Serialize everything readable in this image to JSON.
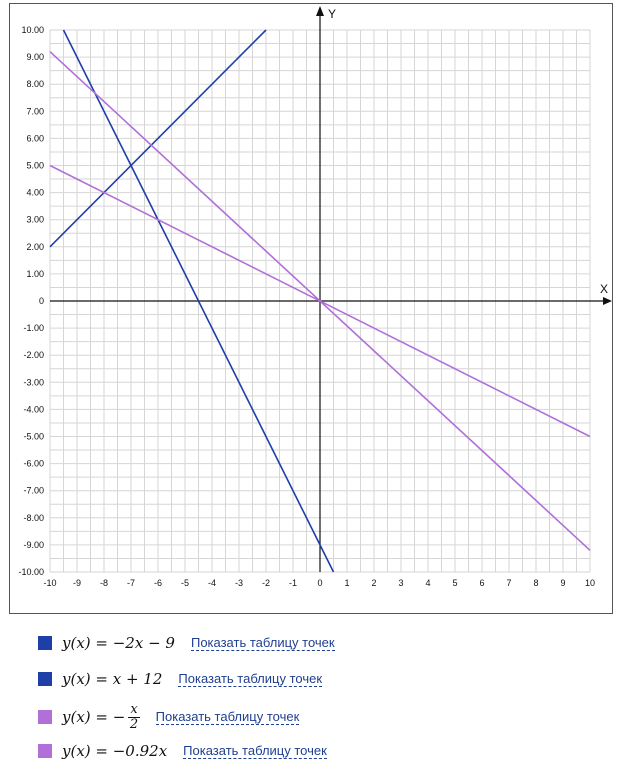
{
  "chart_data": {
    "type": "line",
    "xlim": [
      -10,
      10
    ],
    "ylim": [
      -10,
      10
    ],
    "xlabel": "X",
    "ylabel": "Y",
    "grid": true,
    "x_ticks": [
      "-10",
      "-9",
      "-8",
      "-7",
      "-6",
      "-5",
      "-4",
      "-3",
      "-2",
      "-1",
      "0",
      "1",
      "2",
      "3",
      "4",
      "5",
      "6",
      "7",
      "8",
      "9",
      "10"
    ],
    "y_ticks": [
      "10.00",
      "9.00",
      "8.00",
      "7.00",
      "6.00",
      "5.00",
      "4.00",
      "3.00",
      "2.00",
      "1.00",
      "0",
      "-1.00",
      "-2.00",
      "-3.00",
      "-4.00",
      "-5.00",
      "-6.00",
      "-7.00",
      "-8.00",
      "-9.00",
      "-10.00"
    ],
    "series": [
      {
        "color": "#1f3fa8",
        "points": [
          [
            -9.5,
            10
          ],
          [
            0.5,
            -10
          ]
        ]
      },
      {
        "color": "#1f3fa8",
        "points": [
          [
            -10,
            2
          ],
          [
            -2,
            10
          ]
        ]
      },
      {
        "color": "#b070d8",
        "points": [
          [
            -10,
            5
          ],
          [
            10,
            -5
          ]
        ]
      },
      {
        "color": "#b070d8",
        "points": [
          [
            -10,
            9.2
          ],
          [
            10,
            -9.2
          ]
        ]
      }
    ]
  },
  "legend": [
    {
      "color": "#1f3fa8",
      "formula": "y(x) = −2x − 9",
      "link": "Показать таблицу точек"
    },
    {
      "color": "#1f3fa8",
      "formula": "y(x) = x + 12",
      "link": "Показать таблицу точек"
    },
    {
      "color": "#b070d8",
      "formula_prefix": "y(x) = −",
      "frac_num": "x",
      "frac_den": "2",
      "link": "Показать таблицу точек"
    },
    {
      "color": "#b070d8",
      "formula": "y(x) = −0.92x",
      "link": "Показать таблицу точек"
    }
  ]
}
